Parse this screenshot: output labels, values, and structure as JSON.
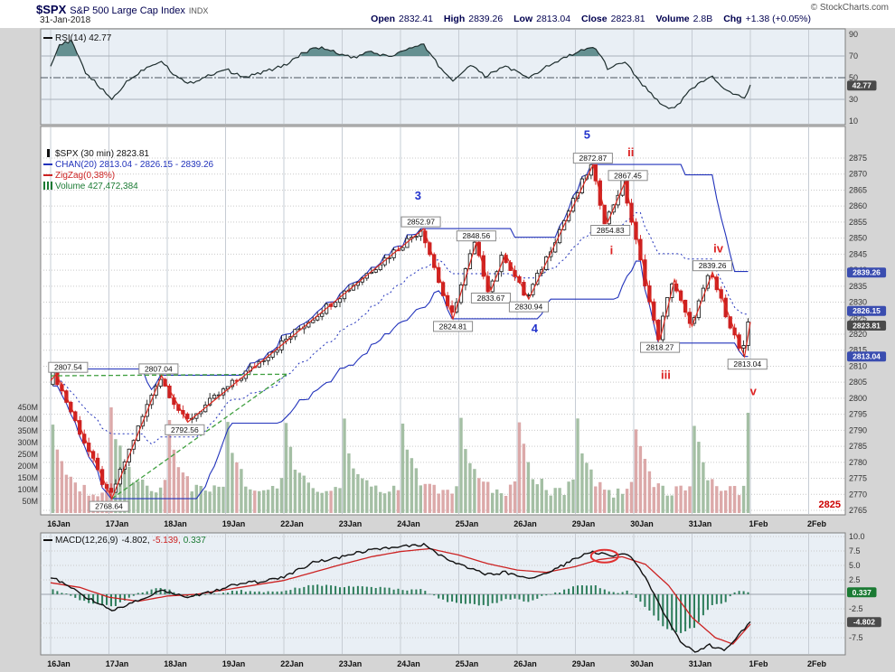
{
  "header": {
    "symbol": "$SPX",
    "name": "S&P 500 Large Cap Index",
    "exchange": "INDX",
    "copyright": "© StockCharts.com",
    "date": "31-Jan-2018",
    "quote": {
      "open_label": "Open",
      "open": "2832.41",
      "high_label": "High",
      "high": "2839.26",
      "low_label": "Low",
      "low": "2813.04",
      "close_label": "Close",
      "close": "2823.81",
      "volume_label": "Volume",
      "volume": "2.8B",
      "chg_label": "Chg",
      "chg": "+1.38 (+0.05%)"
    }
  },
  "rsi_panel": {
    "legend": "RSI(14) 42.77"
  },
  "main_panel": {
    "legend": [
      {
        "label": "$SPX (30 min) 2823.81"
      },
      {
        "label": "CHAN(20) 2813.04 - 2826.15 - 2839.26"
      },
      {
        "label": "ZigZag(0,38%)"
      },
      {
        "label": "Volume 427,472,384"
      }
    ]
  },
  "macd_panel": {
    "legend_parts": [
      {
        "text": "MACD(12,26,9)"
      },
      {
        "text": "-4.802,"
      },
      {
        "text": "-5.139,"
      },
      {
        "text": "0.337"
      }
    ]
  },
  "xaxis": {
    "labels": [
      "16Jan",
      "17Jan",
      "18Jan",
      "19Jan",
      "22Jan",
      "23Jan",
      "24Jan",
      "25Jan",
      "26Jan",
      "29Jan",
      "30Jan",
      "31Jan",
      "1Feb",
      "2Feb"
    ]
  },
  "colors": {
    "panel_bg": "#e9eff5",
    "panel_border": "#808080",
    "grid": "#c6ccd4",
    "grid_dot": "#c9c9c9",
    "rsi_fill": "#4e7f7f",
    "rsi_line": "#1d2d2d",
    "candle_up": "#222222",
    "candle_down": "#cc2020",
    "channel": "#2233bb",
    "zigzag": "#dd2a20",
    "trendline": "#3f9f3f",
    "vol_up": "#9ab89a",
    "vol_down": "#d8a0a0",
    "wave_blue": "#2233cc",
    "wave_red": "#dd2222",
    "badge_blue": "#3a4db0",
    "badge_green": "#1a7a33",
    "badge_dark": "#4a4a4a",
    "pivot_red": "#cc0000",
    "macd": "#111111",
    "signal": "#cc2222",
    "hist": "#2e7d5b"
  },
  "chart_data": [
    {
      "type": "line",
      "name": "RSI(14)",
      "panel": "rsi",
      "ylim": [
        10,
        90
      ],
      "yticks": [
        90,
        70,
        50,
        30,
        10
      ],
      "overbought": 70,
      "oversold": 30,
      "centerline": 50,
      "last_value": 42.77,
      "badge": {
        "at": 42.77,
        "text": "42.77",
        "style": "dark"
      },
      "points": [
        [
          0,
          62
        ],
        [
          0.15,
          80
        ],
        [
          0.35,
          84
        ],
        [
          0.6,
          55
        ],
        [
          0.9,
          38
        ],
        [
          1.05,
          30
        ],
        [
          1.3,
          46
        ],
        [
          1.6,
          58
        ],
        [
          1.9,
          66
        ],
        [
          2.1,
          54
        ],
        [
          2.35,
          44
        ],
        [
          2.7,
          52
        ],
        [
          3.0,
          58
        ],
        [
          3.3,
          50
        ],
        [
          3.7,
          56
        ],
        [
          4.0,
          61
        ],
        [
          4.3,
          72
        ],
        [
          4.6,
          78
        ],
        [
          4.9,
          73
        ],
        [
          5.2,
          68
        ],
        [
          5.5,
          74
        ],
        [
          5.8,
          69
        ],
        [
          6.1,
          76
        ],
        [
          6.4,
          80
        ],
        [
          6.7,
          58
        ],
        [
          6.9,
          47
        ],
        [
          7.2,
          62
        ],
        [
          7.45,
          51
        ],
        [
          7.8,
          61
        ],
        [
          8.2,
          49
        ],
        [
          8.5,
          60
        ],
        [
          8.8,
          68
        ],
        [
          9.1,
          75
        ],
        [
          9.35,
          77
        ],
        [
          9.55,
          59
        ],
        [
          9.85,
          65
        ],
        [
          10.1,
          47
        ],
        [
          10.45,
          26
        ],
        [
          10.7,
          21
        ],
        [
          11.0,
          41
        ],
        [
          11.35,
          51
        ],
        [
          11.6,
          37
        ],
        [
          11.9,
          31
        ],
        [
          12,
          42.77
        ]
      ]
    },
    {
      "type": "candlestick",
      "name": "$SPX (30 min)",
      "panel": "price",
      "ylim": [
        2765,
        2880
      ],
      "yticks": [
        2875,
        2870,
        2865,
        2860,
        2855,
        2850,
        2845,
        2840,
        2835,
        2830,
        2825,
        2820,
        2815,
        2810,
        2805,
        2800,
        2795,
        2790,
        2785,
        2780,
        2775,
        2770,
        2765
      ],
      "bars_per_day": 13,
      "data_days": 12,
      "last_close": 2823.81,
      "zigzag_pct": "0.38%",
      "zigzag": [
        [
          0.0,
          2805.5
        ],
        [
          0.1,
          2807.54
        ],
        [
          1.05,
          2768.64
        ],
        [
          1.9,
          2807.04
        ],
        [
          2.35,
          2792.56
        ],
        [
          6.4,
          2852.97
        ],
        [
          6.9,
          2824.81
        ],
        [
          7.3,
          2848.56
        ],
        [
          7.55,
          2833.67
        ],
        [
          7.8,
          2845.0
        ],
        [
          8.2,
          2830.94
        ],
        [
          9.3,
          2872.87
        ],
        [
          9.55,
          2854.83
        ],
        [
          9.85,
          2867.45
        ],
        [
          10.45,
          2818.27
        ],
        [
          10.7,
          2837.0
        ],
        [
          11.0,
          2822.5
        ],
        [
          11.35,
          2839.26
        ],
        [
          11.9,
          2813.04
        ],
        [
          12.0,
          2823.81
        ]
      ],
      "channel": {
        "period": 20,
        "last_upper": 2839.26,
        "last_mid": 2826.15,
        "last_lower": 2813.04
      },
      "volume": {
        "yticks_M": [
          450,
          400,
          350,
          300,
          250,
          200,
          150,
          100,
          50
        ],
        "last_bar_M": 427,
        "total": "427,472,384"
      },
      "annotations": [
        {
          "day": 0.3,
          "price": 2807.54,
          "text": "2807.54",
          "side": "above"
        },
        {
          "day": 1.0,
          "price": 2768.64,
          "text": "2768.64",
          "side": "below"
        },
        {
          "day": 1.85,
          "price": 2807.04,
          "text": "2807.04",
          "side": "above"
        },
        {
          "day": 2.3,
          "price": 2792.56,
          "text": "2792.56",
          "side": "below"
        },
        {
          "day": 6.35,
          "price": 2852.97,
          "text": "2852.97",
          "side": "above"
        },
        {
          "day": 6.9,
          "price": 2824.81,
          "text": "2824.81",
          "side": "below"
        },
        {
          "day": 7.3,
          "price": 2848.56,
          "text": "2848.56",
          "side": "above"
        },
        {
          "day": 7.55,
          "price": 2833.67,
          "text": "2833.67",
          "side": "below"
        },
        {
          "day": 8.2,
          "price": 2830.94,
          "text": "2830.94",
          "side": "below"
        },
        {
          "day": 9.3,
          "price": 2872.87,
          "text": "2872.87",
          "side": "above"
        },
        {
          "day": 9.6,
          "price": 2854.83,
          "text": "2854.83",
          "side": "below"
        },
        {
          "day": 9.9,
          "price": 2867.45,
          "text": "2867.45",
          "side": "above"
        },
        {
          "day": 10.45,
          "price": 2818.27,
          "text": "2818.27",
          "side": "below"
        },
        {
          "day": 11.35,
          "price": 2839.26,
          "text": "2839.26",
          "side": "above"
        },
        {
          "day": 11.95,
          "price": 2813.04,
          "text": "2813.04",
          "side": "below"
        }
      ],
      "wave_labels": [
        {
          "day": 6.3,
          "price": 2862.0,
          "text": "3",
          "color": "blue"
        },
        {
          "day": 9.2,
          "price": 2881.0,
          "text": "5",
          "color": "blue"
        },
        {
          "day": 8.3,
          "price": 2820.5,
          "text": "4",
          "color": "blue"
        },
        {
          "day": 9.62,
          "price": 2845.0,
          "text": "i",
          "color": "red"
        },
        {
          "day": 9.95,
          "price": 2875.5,
          "text": "ii",
          "color": "red"
        },
        {
          "day": 10.55,
          "price": 2806.0,
          "text": "iii",
          "color": "red"
        },
        {
          "day": 11.45,
          "price": 2845.5,
          "text": "iv",
          "color": "red"
        },
        {
          "day": 12.05,
          "price": 2801.0,
          "text": "v",
          "color": "red"
        }
      ],
      "trendlines": [
        {
          "from": [
            0.0,
            2807.0
          ],
          "to": [
            4.05,
            2807.5
          ]
        },
        {
          "from": [
            1.05,
            2768.64
          ],
          "to": [
            4.05,
            2807.5
          ]
        }
      ],
      "badges": [
        {
          "at": 2839.26,
          "dy": 0,
          "text": "2839.26",
          "style": "blue"
        },
        {
          "at": 2826.15,
          "dy": -4,
          "text": "2826.15",
          "style": "blue"
        },
        {
          "at": 2823.81,
          "dy": 4,
          "text": "2823.81",
          "style": "dark"
        },
        {
          "at": 2813.04,
          "dy": 0,
          "text": "2813.04",
          "style": "blue"
        }
      ],
      "pivot_label": {
        "text": "2825"
      }
    },
    {
      "type": "line+histogram",
      "name": "MACD(12,26,9)",
      "panel": "macd",
      "ylim": [
        -10.5,
        10.5
      ],
      "yticks": [
        10,
        7.5,
        5,
        2.5,
        0,
        -2.5,
        -5,
        -7.5
      ],
      "last": {
        "macd": -4.802,
        "signal": -5.139,
        "hist": 0.337
      },
      "macd_line": [
        [
          0,
          3
        ],
        [
          0.3,
          1.5
        ],
        [
          0.7,
          -1
        ],
        [
          1.05,
          -2.8
        ],
        [
          1.4,
          -1.5
        ],
        [
          1.9,
          0.8
        ],
        [
          2.35,
          -0.5
        ],
        [
          2.8,
          0.5
        ],
        [
          3.2,
          1.8
        ],
        [
          3.6,
          2.2
        ],
        [
          4,
          3
        ],
        [
          4.5,
          5.5
        ],
        [
          5,
          6.5
        ],
        [
          5.5,
          7.8
        ],
        [
          6,
          8.2
        ],
        [
          6.4,
          8.6
        ],
        [
          6.8,
          6
        ],
        [
          7.2,
          4.5
        ],
        [
          7.5,
          3.4
        ],
        [
          7.8,
          3.8
        ],
        [
          8.2,
          2.8
        ],
        [
          8.6,
          4
        ],
        [
          9,
          6.2
        ],
        [
          9.3,
          7.4
        ],
        [
          9.6,
          6.6
        ],
        [
          9.9,
          6.9
        ],
        [
          10.2,
          3
        ],
        [
          10.5,
          -3
        ],
        [
          10.8,
          -8
        ],
        [
          11.05,
          -10.2
        ],
        [
          11.3,
          -8.8
        ],
        [
          11.55,
          -9.8
        ],
        [
          11.8,
          -7
        ],
        [
          12,
          -4.802
        ]
      ],
      "signal_line": [
        [
          0,
          2
        ],
        [
          0.5,
          1.2
        ],
        [
          1,
          -0.5
        ],
        [
          1.5,
          -1.2
        ],
        [
          2,
          -0.3
        ],
        [
          2.5,
          0
        ],
        [
          3,
          0.8
        ],
        [
          3.5,
          1.6
        ],
        [
          4,
          2.4
        ],
        [
          4.5,
          3.8
        ],
        [
          5,
          5.2
        ],
        [
          5.5,
          6.5
        ],
        [
          6,
          7.4
        ],
        [
          6.5,
          7.9
        ],
        [
          7,
          6.8
        ],
        [
          7.5,
          5.3
        ],
        [
          8,
          4.2
        ],
        [
          8.5,
          3.8
        ],
        [
          9,
          4.8
        ],
        [
          9.4,
          6
        ],
        [
          9.8,
          6.5
        ],
        [
          10.2,
          5.2
        ],
        [
          10.6,
          1.5
        ],
        [
          11,
          -4
        ],
        [
          11.4,
          -7.5
        ],
        [
          11.7,
          -8.6
        ],
        [
          12,
          -5.139
        ]
      ],
      "highlight_ellipse": {
        "day": 9.5,
        "value": 6.6
      },
      "badges": [
        {
          "at": 0.337,
          "text": "0.337",
          "style": "green"
        },
        {
          "at": -4.802,
          "text": "-4.802",
          "style": "dark"
        }
      ]
    }
  ]
}
